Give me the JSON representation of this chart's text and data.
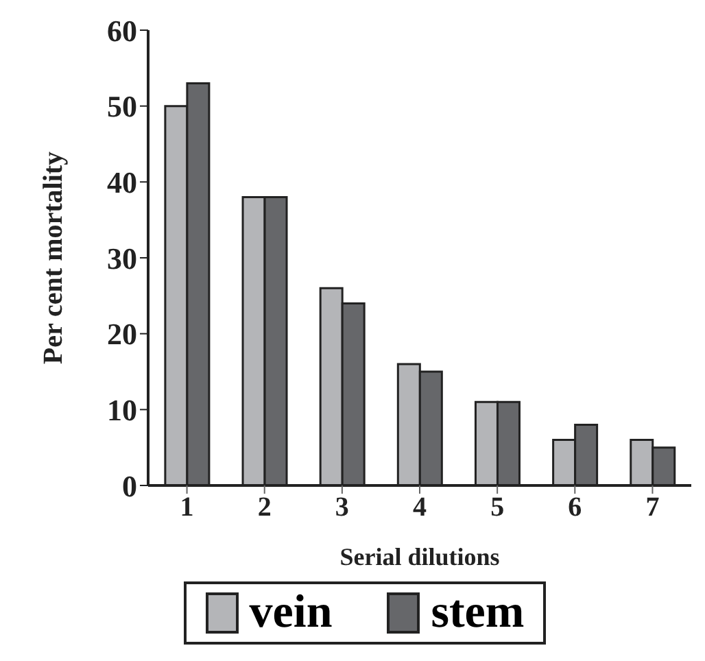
{
  "chart_data": {
    "type": "bar",
    "xlabel": "Serial dilutions",
    "ylabel": "Per cent mortality",
    "categories": [
      "1",
      "2",
      "3",
      "4",
      "5",
      "6",
      "7"
    ],
    "series": [
      {
        "name": "vein",
        "color": "#b4b5b8",
        "values": [
          50,
          38,
          26,
          16,
          11,
          6,
          6
        ]
      },
      {
        "name": "stem",
        "color": "#66676a",
        "values": [
          53,
          38,
          24,
          15,
          11,
          8,
          5
        ]
      }
    ],
    "ylim": [
      0,
      60
    ],
    "yticks": [
      0,
      10,
      20,
      30,
      40,
      50,
      60
    ],
    "grid": false,
    "legend": "bottom"
  }
}
